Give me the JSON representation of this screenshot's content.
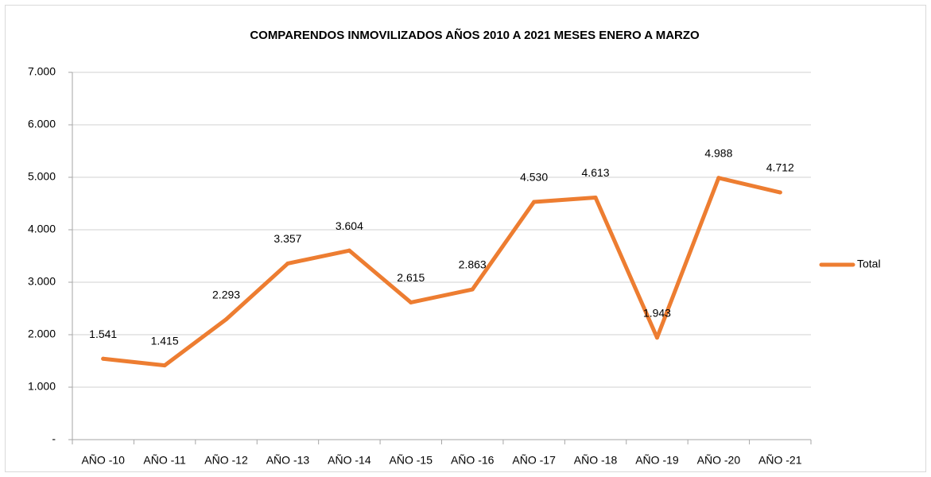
{
  "chart_data": {
    "type": "line",
    "title": "COMPARENDOS INMOVILIZADOS AÑOS 2010 A 2021 MESES ENERO A MARZO",
    "categories": [
      "AÑO -10",
      "AÑO -11",
      "AÑO -12",
      "AÑO -13",
      "AÑO -14",
      "AÑO -15",
      "AÑO -16",
      "AÑO -17",
      "AÑO -18",
      "AÑO -19",
      "AÑO -20",
      "AÑO -21"
    ],
    "series": [
      {
        "name": "Total",
        "color": "#ed7d31",
        "values": [
          1541,
          1415,
          2293,
          3357,
          3604,
          2615,
          2863,
          4530,
          4613,
          1943,
          4988,
          4712
        ],
        "value_labels": [
          "1.541",
          "1.415",
          "2.293",
          "3.357",
          "3.604",
          "2.615",
          "2.863",
          "4.530",
          "4.613",
          "1.943",
          "4.988",
          "4.712"
        ]
      }
    ],
    "ylim": [
      0,
      7000
    ],
    "yticks": [
      {
        "value": 0,
        "label": "-"
      },
      {
        "value": 1000,
        "label": "1.000"
      },
      {
        "value": 2000,
        "label": "2.000"
      },
      {
        "value": 3000,
        "label": "3.000"
      },
      {
        "value": 4000,
        "label": "4.000"
      },
      {
        "value": 5000,
        "label": "5.000"
      },
      {
        "value": 6000,
        "label": "6.000"
      },
      {
        "value": 7000,
        "label": "7.000"
      }
    ],
    "grid": true,
    "legend": "right"
  }
}
